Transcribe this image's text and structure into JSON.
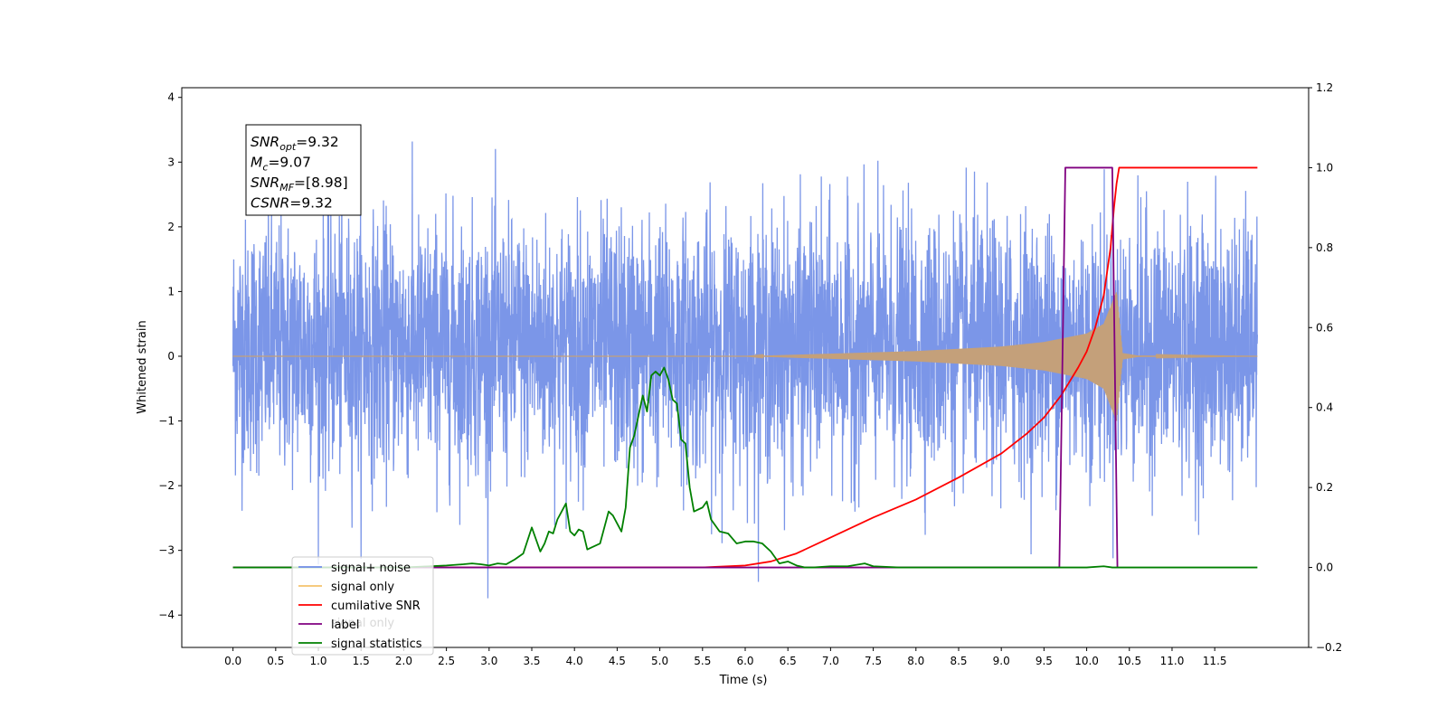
{
  "chart_data": {
    "type": "line",
    "xlabel": "Time (s)",
    "ylabel": "Whitened strain",
    "xlim": [
      -0.6,
      12.6
    ],
    "ylim": [
      -4.5,
      4.15
    ],
    "y2lim": [
      -0.2,
      1.2
    ],
    "grid": false,
    "legend_position": "lower-left",
    "x_ticks": [
      0.0,
      0.5,
      1.0,
      1.5,
      2.0,
      2.5,
      3.0,
      3.5,
      4.0,
      4.5,
      5.0,
      5.5,
      6.0,
      6.5,
      7.0,
      7.5,
      8.0,
      8.5,
      9.0,
      9.5,
      10.0,
      10.5,
      11.0,
      11.5
    ],
    "x_tick_labels": [
      "0.0",
      "0.5",
      "1.0",
      "1.5",
      "2.0",
      "2.5",
      "3.0",
      "3.5",
      "4.0",
      "4.5",
      "5.0",
      "5.5",
      "6.0",
      "6.5",
      "7.0",
      "7.5",
      "8.0",
      "8.5",
      "9.0",
      "9.5",
      "10.0",
      "10.5",
      "11.0",
      "11.5"
    ],
    "y_ticks": [
      -4,
      -3,
      -2,
      -1,
      0,
      1,
      2,
      3,
      4
    ],
    "y_tick_labels": [
      "−4",
      "−3",
      "−2",
      "−1",
      "0",
      "1",
      "2",
      "3",
      "4"
    ],
    "y2_ticks": [
      -0.2,
      0.0,
      0.2,
      0.4,
      0.6,
      0.8,
      1.0,
      1.2
    ],
    "y2_tick_labels": [
      "−0.2",
      "0.0",
      "0.2",
      "0.4",
      "0.6",
      "0.8",
      "1.0",
      "1.2"
    ],
    "annotation": {
      "lines": [
        {
          "sym": "SNR",
          "sub": "opt",
          "val": "=9.32"
        },
        {
          "sym": "M",
          "sub": "c",
          "val": "=9.07"
        },
        {
          "sym": "SNR",
          "sub": "MF",
          "val": "=[8.98]"
        },
        {
          "sym": "CSNR",
          "sub": "",
          "val": "=9.32"
        }
      ]
    },
    "legend": [
      {
        "label": "signal+ noise",
        "color": "#6f8ce6"
      },
      {
        "label": "signal only",
        "color": "#f5c36b"
      },
      {
        "label": "cumilative SNR",
        "color": "#ff0000"
      },
      {
        "label": "label",
        "color": "#800080"
      },
      {
        "label": "signal statistics",
        "color": "#008000"
      }
    ],
    "hidden_legend_text": "signal only",
    "series": [
      {
        "name": "signal+ noise",
        "axis": "left",
        "color": "#7b96e8",
        "kind": "noise",
        "t_range": [
          0.0,
          12.0
        ],
        "band": [
          -2.0,
          2.3
        ],
        "typical_max": 2.9,
        "typical_min": -2.8
      },
      {
        "name": "signal only",
        "axis": "left",
        "color": "#c4a07a",
        "kind": "chirp",
        "t_range": [
          0.0,
          12.0
        ],
        "merger_time": 10.35,
        "peak_amplitude": 1.0,
        "envelope": [
          [
            6.0,
            0.0
          ],
          [
            7.0,
            0.04
          ],
          [
            8.0,
            0.08
          ],
          [
            9.0,
            0.15
          ],
          [
            9.5,
            0.22
          ],
          [
            10.0,
            0.35
          ],
          [
            10.2,
            0.5
          ],
          [
            10.32,
            0.9
          ],
          [
            10.35,
            1.0
          ],
          [
            10.42,
            0.05
          ],
          [
            10.6,
            0.01
          ],
          [
            12.0,
            0.0
          ]
        ]
      },
      {
        "name": "cumilative SNR",
        "axis": "right",
        "color": "#ff0000",
        "points": [
          [
            0.0,
            0.0
          ],
          [
            5.0,
            0.0
          ],
          [
            5.5,
            0.0
          ],
          [
            6.0,
            0.005
          ],
          [
            6.3,
            0.015
          ],
          [
            6.6,
            0.035
          ],
          [
            7.0,
            0.075
          ],
          [
            7.5,
            0.125
          ],
          [
            8.0,
            0.17
          ],
          [
            8.5,
            0.225
          ],
          [
            9.0,
            0.285
          ],
          [
            9.3,
            0.335
          ],
          [
            9.5,
            0.375
          ],
          [
            9.7,
            0.43
          ],
          [
            9.9,
            0.5
          ],
          [
            10.0,
            0.54
          ],
          [
            10.1,
            0.6
          ],
          [
            10.2,
            0.68
          ],
          [
            10.28,
            0.8
          ],
          [
            10.32,
            0.9
          ],
          [
            10.35,
            0.96
          ],
          [
            10.38,
            1.0
          ],
          [
            11.0,
            1.0
          ],
          [
            11.5,
            1.0
          ],
          [
            12.0,
            1.0
          ]
        ]
      },
      {
        "name": "label",
        "axis": "right",
        "color": "#800080",
        "points": [
          [
            0.0,
            0.0
          ],
          [
            9.68,
            0.0
          ],
          [
            9.75,
            1.0
          ],
          [
            10.3,
            1.0
          ],
          [
            10.36,
            0.0
          ]
        ]
      },
      {
        "name": "signal statistics",
        "axis": "right",
        "color": "#008000",
        "points": [
          [
            0.0,
            0.0
          ],
          [
            1.0,
            0.0
          ],
          [
            2.0,
            0.0
          ],
          [
            2.3,
            0.003
          ],
          [
            2.5,
            0.005
          ],
          [
            2.7,
            0.008
          ],
          [
            2.8,
            0.01
          ],
          [
            2.9,
            0.008
          ],
          [
            3.0,
            0.005
          ],
          [
            3.1,
            0.01
          ],
          [
            3.2,
            0.008
          ],
          [
            3.3,
            0.02
          ],
          [
            3.4,
            0.035
          ],
          [
            3.5,
            0.1
          ],
          [
            3.55,
            0.07
          ],
          [
            3.6,
            0.04
          ],
          [
            3.65,
            0.06
          ],
          [
            3.7,
            0.09
          ],
          [
            3.75,
            0.085
          ],
          [
            3.8,
            0.12
          ],
          [
            3.85,
            0.14
          ],
          [
            3.9,
            0.16
          ],
          [
            3.95,
            0.09
          ],
          [
            4.0,
            0.08
          ],
          [
            4.05,
            0.095
          ],
          [
            4.1,
            0.09
          ],
          [
            4.15,
            0.045
          ],
          [
            4.2,
            0.05
          ],
          [
            4.3,
            0.06
          ],
          [
            4.4,
            0.14
          ],
          [
            4.45,
            0.13
          ],
          [
            4.5,
            0.11
          ],
          [
            4.55,
            0.09
          ],
          [
            4.6,
            0.15
          ],
          [
            4.65,
            0.3
          ],
          [
            4.7,
            0.33
          ],
          [
            4.75,
            0.38
          ],
          [
            4.8,
            0.43
          ],
          [
            4.85,
            0.39
          ],
          [
            4.9,
            0.48
          ],
          [
            4.95,
            0.49
          ],
          [
            5.0,
            0.48
          ],
          [
            5.05,
            0.5
          ],
          [
            5.1,
            0.47
          ],
          [
            5.15,
            0.42
          ],
          [
            5.2,
            0.41
          ],
          [
            5.25,
            0.32
          ],
          [
            5.3,
            0.31
          ],
          [
            5.35,
            0.2
          ],
          [
            5.4,
            0.14
          ],
          [
            5.5,
            0.15
          ],
          [
            5.55,
            0.165
          ],
          [
            5.6,
            0.12
          ],
          [
            5.7,
            0.09
          ],
          [
            5.8,
            0.085
          ],
          [
            5.9,
            0.06
          ],
          [
            6.0,
            0.065
          ],
          [
            6.1,
            0.065
          ],
          [
            6.2,
            0.06
          ],
          [
            6.3,
            0.04
          ],
          [
            6.4,
            0.01
          ],
          [
            6.5,
            0.015
          ],
          [
            6.6,
            0.005
          ],
          [
            6.7,
            0.0
          ],
          [
            6.8,
            0.0
          ],
          [
            7.0,
            0.003
          ],
          [
            7.2,
            0.003
          ],
          [
            7.4,
            0.01
          ],
          [
            7.5,
            0.003
          ],
          [
            7.8,
            0.0
          ],
          [
            8.0,
            0.0
          ],
          [
            9.0,
            0.0
          ],
          [
            10.0,
            0.0
          ],
          [
            10.2,
            0.003
          ],
          [
            10.3,
            0.0
          ],
          [
            11.0,
            0.0
          ],
          [
            12.0,
            0.0
          ]
        ]
      }
    ]
  }
}
